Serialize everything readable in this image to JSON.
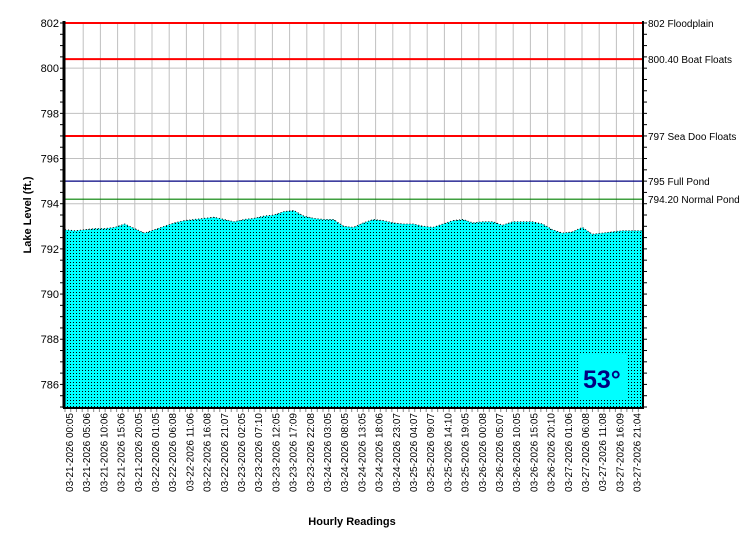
{
  "chart_data": {
    "type": "area",
    "title": "",
    "xlabel": "Hourly Readings",
    "ylabel": "Lake Level (ft.)",
    "ylim": [
      785,
      802
    ],
    "yticks": [
      786,
      788,
      790,
      792,
      794,
      796,
      798,
      800,
      802
    ],
    "grid": true,
    "x_tick_labels": [
      "03-21-2026 00:05",
      "03-21-2026 05:06",
      "03-21-2026 10:06",
      "03-21-2026 15:06",
      "03-21-2026 20:05",
      "03-22-2026 01:05",
      "03-22-2026 06:08",
      "03-22-2026 11:06",
      "03-22-2026 16:08",
      "03-22-2026 21:07",
      "03-23-2026 02:05",
      "03-23-2026 07:10",
      "03-23-2026 12:05",
      "03-23-2026 17:09",
      "03-23-2026 22:08",
      "03-24-2026 03:05",
      "03-24-2026 08:05",
      "03-24-2026 13:05",
      "03-24-2026 18:06",
      "03-24-2026 23:07",
      "03-25-2026 04:07",
      "03-25-2026 09:07",
      "03-25-2026 14:10",
      "03-25-2026 19:05",
      "03-26-2026 00:08",
      "03-26-2026 05:07",
      "03-26-2026 10:05",
      "03-26-2026 15:05",
      "03-26-2026 20:10",
      "03-27-2026 01:06",
      "03-27-2026 06:08",
      "03-27-2026 11:08",
      "03-27-2026 16:09",
      "03-27-2026 21:04"
    ],
    "series": [
      {
        "color": "#00FFFF",
        "values": [
          792.85,
          792.8,
          792.85,
          792.9,
          792.9,
          792.95,
          793.1,
          792.9,
          792.7,
          792.85,
          793.0,
          793.15,
          793.25,
          793.3,
          793.35,
          793.4,
          793.3,
          793.2,
          793.3,
          793.35,
          793.45,
          793.5,
          793.65,
          793.7,
          793.45,
          793.35,
          793.3,
          793.3,
          793.0,
          792.95,
          793.15,
          793.3,
          793.25,
          793.15,
          793.1,
          793.1,
          793.0,
          792.95,
          793.1,
          793.25,
          793.3,
          793.15,
          793.2,
          793.2,
          793.05,
          793.2,
          793.2,
          793.2,
          793.1,
          792.85,
          792.7,
          792.75,
          792.95,
          792.65,
          792.7,
          792.75,
          792.8,
          792.8,
          792.8
        ]
      }
    ],
    "reference_lines": [
      {
        "value": 802,
        "label": "802 Floodplain",
        "color": "#FF0000"
      },
      {
        "value": 800.4,
        "label": "800.40 Boat Floats",
        "color": "#FF0000"
      },
      {
        "value": 797,
        "label": "797 Sea Doo Floats",
        "color": "#FF0000"
      },
      {
        "value": 795,
        "label": "795 Full Pond",
        "color": "#000080"
      },
      {
        "value": 794.2,
        "label": "794.20 Normal Pond",
        "color": "#008000"
      }
    ],
    "annotation": {
      "text": "53°",
      "color": "#000080",
      "background": "#00FFFF"
    }
  }
}
